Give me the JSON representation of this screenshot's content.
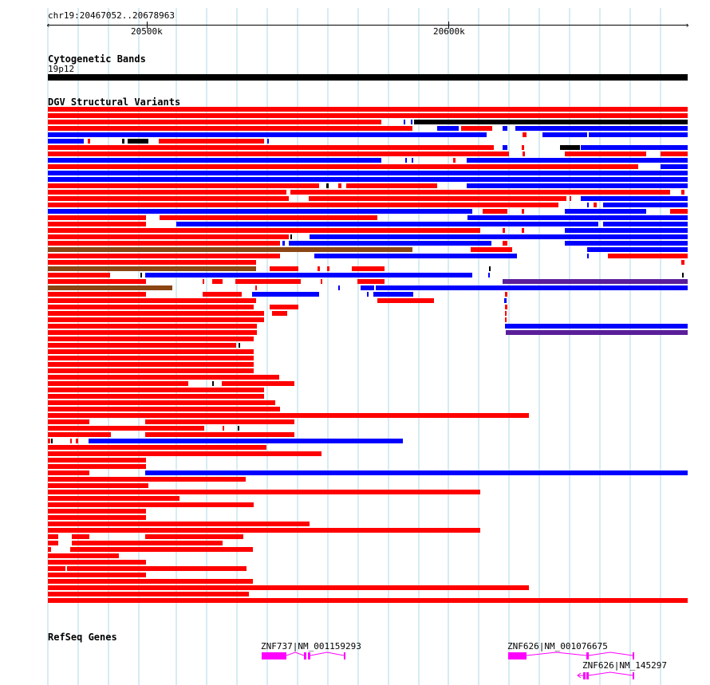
{
  "ruler": {
    "location": "chr19:20467052..20678963",
    "ticks": [
      {
        "label": "20500k",
        "pos": 20500000
      },
      {
        "label": "20600k",
        "pos": 20600000
      }
    ]
  },
  "cytoband": {
    "title": "Cytogenetic Bands",
    "band": "19p12"
  },
  "dgv": {
    "title": "DGV Structural Variants"
  },
  "refseq": {
    "title": "RefSeq Genes",
    "genes": [
      {
        "label": "ZNF737|NM_001159293",
        "strand": "-"
      },
      {
        "label": "ZNF626|NM_001076675",
        "strand": "-"
      },
      {
        "label": "ZNF626|NM_145297",
        "strand": "-"
      }
    ]
  },
  "colors": {
    "gain": "#ff0000",
    "loss": "#0000ff",
    "inversion": "#000000",
    "gain_loss": "#8b4513",
    "complex": "#5a1e9a",
    "gene": "#ff00ff",
    "gridline": "#add8e6"
  }
}
